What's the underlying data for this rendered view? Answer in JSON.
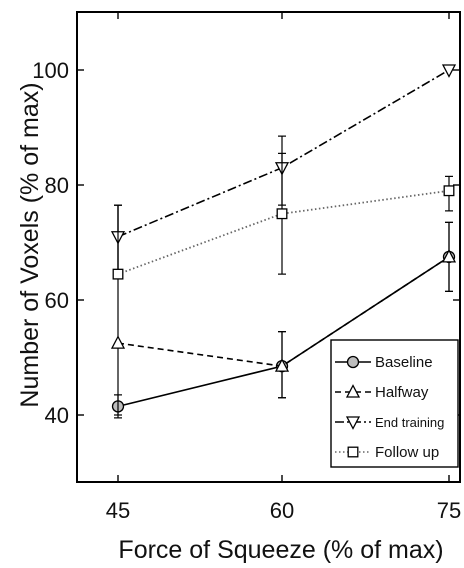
{
  "chart_data": {
    "type": "line",
    "title": "",
    "xlabel": "Force of Squeeze (% of max)",
    "ylabel": "Number of Voxels (% of max)",
    "x": [
      45,
      60,
      75
    ],
    "xticks": [
      "45",
      "60",
      "75"
    ],
    "yticks": [
      "40",
      "60",
      "80",
      "100"
    ],
    "xlim": [
      45,
      75
    ],
    "ylim": [
      28,
      110
    ],
    "grid": false,
    "legend_position": "bottom-right",
    "series": [
      {
        "name": "Baseline",
        "values": [
          41.5,
          48.5,
          67.5
        ],
        "err_low": [
          39.5,
          43,
          61.5
        ],
        "err_high": [
          43.5,
          54.5,
          73.5
        ],
        "line": "solid",
        "marker": "circle"
      },
      {
        "name": "Halfway",
        "values": [
          52.5,
          48.5,
          67.5
        ],
        "err_low": [
          40,
          43,
          61.5
        ],
        "err_high": [
          76.5,
          54.5,
          73.5
        ],
        "line": "dashed",
        "marker": "triangle-up"
      },
      {
        "name": "End training",
        "values": [
          71,
          83,
          100
        ],
        "err_low": [
          64,
          76.5,
          100
        ],
        "err_high": [
          76.5,
          88.5,
          100
        ],
        "line": "dashdot",
        "marker": "triangle-down"
      },
      {
        "name": "Follow up",
        "values": [
          64.5,
          75,
          79
        ],
        "err_low": [
          64.5,
          64.5,
          75.5
        ],
        "err_high": [
          76.5,
          85.5,
          81.5
        ],
        "line": "dotted",
        "marker": "square"
      }
    ]
  }
}
